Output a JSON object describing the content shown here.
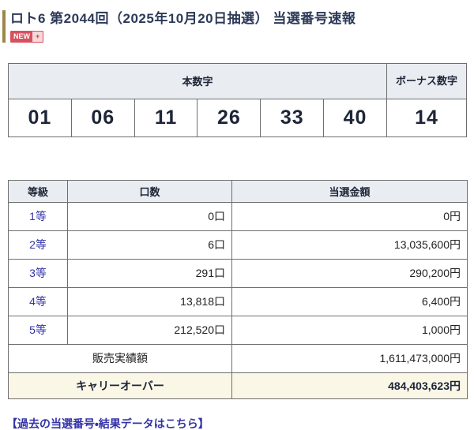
{
  "page": {
    "title": "ロト6 第2044回（2025年10月20日抽選） 当選番号速報",
    "new_badge": "NEW",
    "new_badge_plus": "+",
    "footer_link": "【過去の当選番号・結果データはこちら】"
  },
  "numbers_table": {
    "main_header": "本数字",
    "bonus_header": "ボーナス数字",
    "main_numbers": [
      "01",
      "06",
      "11",
      "26",
      "33",
      "40"
    ],
    "bonus_number": "14"
  },
  "prize_table": {
    "headers": [
      "等級",
      "口数",
      "当選金額"
    ],
    "rows": [
      {
        "rank": "1等",
        "count": "0口",
        "amount": "0円"
      },
      {
        "rank": "2等",
        "count": "6口",
        "amount": "13,035,600円"
      },
      {
        "rank": "3等",
        "count": "291口",
        "amount": "290,200円"
      },
      {
        "rank": "4等",
        "count": "13,818口",
        "amount": "6,400円"
      },
      {
        "rank": "5等",
        "count": "212,520口",
        "amount": "1,000円"
      }
    ],
    "sales_label": "販売実績額",
    "sales_amount": "1,611,473,000円",
    "carryover_label": "キャリーオーバー",
    "carryover_amount": "484,403,623円"
  },
  "colors": {
    "accent_bar": "#9c8648",
    "title_text": "#2c3a59",
    "link": "#3333a8",
    "table_header_bg": "#e9edf2",
    "carryover_bg": "#faf7e6",
    "badge_red": "#d6515d",
    "badge_pink": "#f6d7da"
  }
}
